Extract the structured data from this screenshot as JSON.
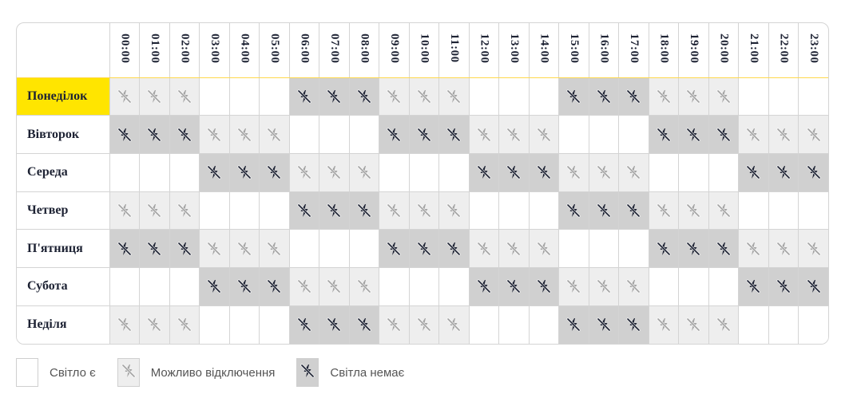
{
  "hours": [
    "00:00",
    "01:00",
    "02:00",
    "03:00",
    "04:00",
    "05:00",
    "06:00",
    "07:00",
    "08:00",
    "09:00",
    "10:00",
    "11:00",
    "12:00",
    "13:00",
    "14:00",
    "15:00",
    "16:00",
    "17:00",
    "18:00",
    "19:00",
    "20:00",
    "21:00",
    "22:00",
    "23:00"
  ],
  "days": [
    {
      "name": "Понеділок",
      "highlighted": true,
      "slots": "mmmeeennnmmmeeennnmmmeee"
    },
    {
      "name": "Вівторок",
      "highlighted": false,
      "slots": "nnnmmmeeennnmmmeeennnmmm"
    },
    {
      "name": "Середа",
      "highlighted": false,
      "slots": "eeennnmmmeeennnmmmeeennn"
    },
    {
      "name": "Четвер",
      "highlighted": false,
      "slots": "mmmeeennnmmmeeennnmmmeee"
    },
    {
      "name": "П'ятниця",
      "highlighted": false,
      "slots": "nnnmmmeeennnmmmeeennnmmm"
    },
    {
      "name": "Субота",
      "highlighted": false,
      "slots": "eeennnmmmeeennnmmmeeennn"
    },
    {
      "name": "Неділя",
      "highlighted": false,
      "slots": "mmmeeennnmmmeeennnmmmeee"
    }
  ],
  "slot_legend": {
    "e": "electricity",
    "m": "maybe-outage",
    "n": "no-electricity"
  },
  "legend": {
    "electricity": "Світло є",
    "maybe": "Можливо відключення",
    "none": "Світла немає"
  },
  "icons": {
    "maybe": "no-power-outline-icon",
    "none": "no-power-solid-icon"
  },
  "colors": {
    "today": "#ffe500",
    "maybe_bg": "#eeeeee",
    "none_bg": "#d0d0d0",
    "maybe_icon": "#a3a3a3",
    "none_icon": "#1d2233"
  }
}
